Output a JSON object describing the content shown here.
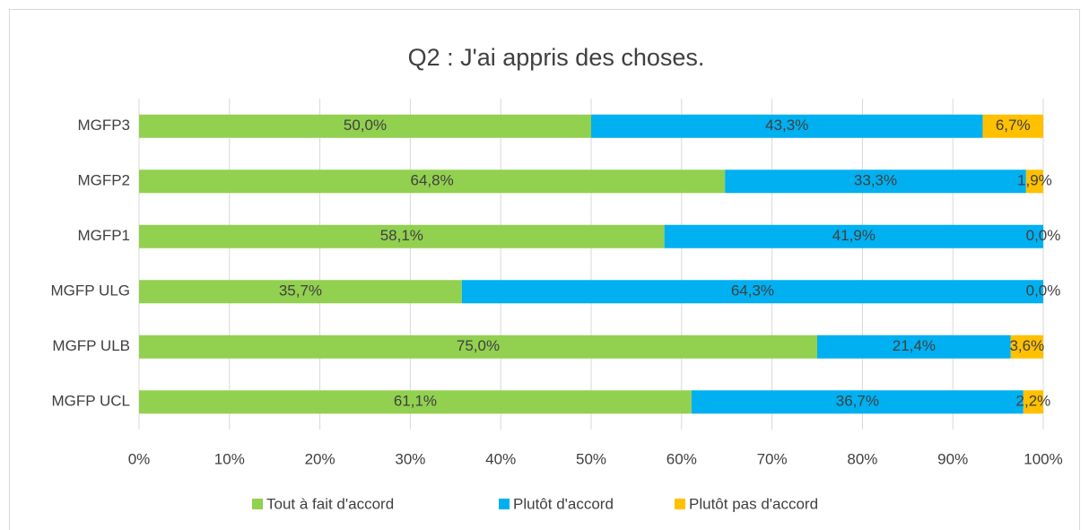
{
  "chart_data": {
    "type": "stacked_barh",
    "title": "Q2 : J'ai appris des choses.",
    "categories": [
      "MGFP3",
      "MGFP2",
      "MGFP1",
      "MGFP ULG",
      "MGFP ULB",
      "MGFP UCL"
    ],
    "series": [
      {
        "name": "Tout à fait d'accord",
        "color": "#92d050",
        "values": [
          50.0,
          64.8,
          58.1,
          35.7,
          75.0,
          61.1
        ],
        "value_labels": [
          "50,0%",
          "64,8%",
          "58,1%",
          "35,7%",
          "75,0%",
          "61,1%"
        ]
      },
      {
        "name": "Plutôt d'accord",
        "color": "#00b0f0",
        "values": [
          43.3,
          33.3,
          41.9,
          64.3,
          21.4,
          36.7
        ],
        "value_labels": [
          "43,3%",
          "33,3%",
          "41,9%",
          "64,3%",
          "21,4%",
          "36,7%"
        ]
      },
      {
        "name": "Plutôt pas d'accord",
        "color": "#ffc000",
        "values": [
          6.7,
          1.9,
          0.0,
          0.0,
          3.6,
          2.2
        ],
        "value_labels": [
          "6,7%",
          "1,9%",
          "0,0%",
          "0,0%",
          "3,6%",
          "2,2%"
        ]
      }
    ],
    "xlim": [
      0,
      100
    ],
    "xticks": [
      {
        "value": 0,
        "label": "0%"
      },
      {
        "value": 10,
        "label": "10%"
      },
      {
        "value": 20,
        "label": "20%"
      },
      {
        "value": 30,
        "label": "30%"
      },
      {
        "value": 40,
        "label": "40%"
      },
      {
        "value": 50,
        "label": "50%"
      },
      {
        "value": 60,
        "label": "60%"
      },
      {
        "value": 70,
        "label": "70%"
      },
      {
        "value": 80,
        "label": "80%"
      },
      {
        "value": 90,
        "label": "90%"
      },
      {
        "value": 100,
        "label": "100%"
      }
    ],
    "grid": true,
    "legend": "bottom"
  }
}
